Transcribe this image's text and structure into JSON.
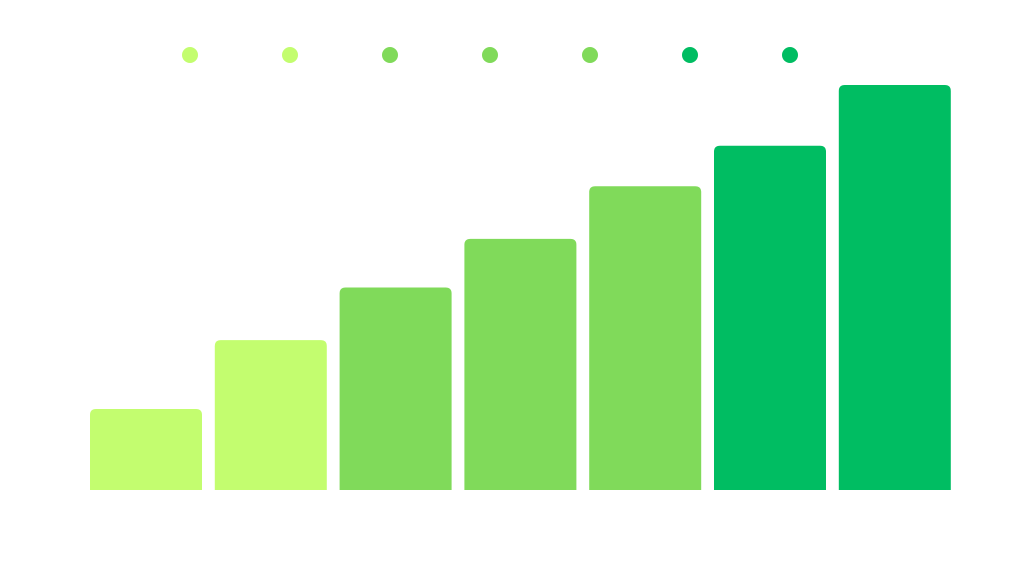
{
  "chart_data": {
    "type": "bar",
    "categories": [
      null,
      null,
      null,
      null,
      null,
      null,
      null
    ],
    "values": [
      20,
      37,
      50,
      62,
      75,
      85,
      100
    ],
    "colors": [
      "#c3fd6f",
      "#c3fd6f",
      "#80da5a",
      "#80da5a",
      "#80da5a",
      "#00bd62",
      "#00bd62"
    ],
    "ylim": [
      0,
      100
    ]
  }
}
